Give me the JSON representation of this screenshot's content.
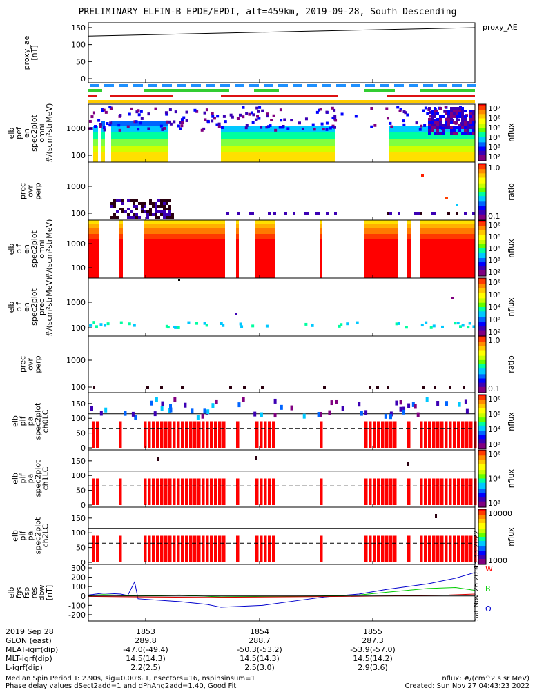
{
  "title": "PRELIMINARY ELFIN-B EPDE/EPDI, alt=459km, 2019-09-28, South Descending",
  "chart_data": {
    "type": "heatmap",
    "time_axis": {
      "date_label": "2019 Sep 28",
      "ticks": [
        "1853",
        "1854",
        "1855"
      ],
      "rows": [
        {
          "name": "GLON (east)",
          "values": [
            "289.8",
            "288.7",
            "287.3"
          ]
        },
        {
          "name": "MLAT-igrf(dip)",
          "values": [
            "-47.0(-49.4)",
            "-50.3(-53.2)",
            "-53.9(-57.0)"
          ]
        },
        {
          "name": "MLT-igrf(dip)",
          "values": [
            "14.5(14.3)",
            "14.5(14.3)",
            "14.5(14.2)"
          ]
        },
        {
          "name": "L-igrf(dip)",
          "values": [
            "2.2(2.5)",
            "2.5(3.0)",
            "2.9(3.6)"
          ]
        }
      ]
    },
    "panels": [
      {
        "id": "proxy_ae",
        "ylabel": [
          "proxy_ae",
          "[nT]"
        ],
        "yticks": [
          "0",
          "50",
          "100",
          "150"
        ],
        "legend": "proxy_AE",
        "line": {
          "start": 125,
          "end": 150,
          "ymin": 0,
          "ymax": 160
        }
      },
      {
        "id": "epde_omni",
        "ylabel": [
          "elb",
          "pef",
          "en",
          "spec2plot",
          "omni",
          "#/(scm²strMeV)"
        ],
        "yticks": [
          "100",
          "1000"
        ],
        "colorbar": {
          "labels": [
            "10⁷",
            "10⁶",
            "10⁵",
            "10⁴",
            "10³",
            "10²"
          ],
          "title": "nflux"
        }
      },
      {
        "id": "epde_ratio",
        "ylabel": [
          "prec",
          "ovr",
          "perp"
        ],
        "yticks": [
          "100",
          "1000"
        ],
        "colorbar": {
          "labels": [
            "1.0",
            "0.1"
          ],
          "title": "ratio"
        }
      },
      {
        "id": "epdi_omni",
        "ylabel": [
          "elb",
          "pif",
          "en",
          "spec2plot",
          "omni",
          "#/(scm²strMeV)"
        ],
        "yticks": [
          "100",
          "1000"
        ],
        "colorbar": {
          "labels": [
            "10⁶",
            "10⁵",
            "10⁴",
            "10³",
            "10²"
          ],
          "title": "nflux"
        }
      },
      {
        "id": "epdi_prec",
        "ylabel": [
          "elb",
          "pif",
          "en",
          "spec2plot",
          "prec",
          "#/(scm²strMeV)"
        ],
        "yticks": [
          "100",
          "1000"
        ],
        "colorbar": {
          "labels": [
            "10⁶",
            "10⁵",
            "10⁴",
            "10³",
            "10²"
          ],
          "title": "nflux"
        }
      },
      {
        "id": "epdi_ratio",
        "ylabel": [
          "prec",
          "ovr",
          "perp"
        ],
        "yticks": [
          "100",
          "1000"
        ],
        "colorbar": {
          "labels": [
            "1.0",
            "0.1"
          ],
          "title": "ratio"
        }
      },
      {
        "id": "pa_ch0",
        "ylabel": [
          "elb",
          "pif",
          "pa",
          "spec2plot",
          "ch0LC"
        ],
        "yticks": [
          "0",
          "50",
          "100",
          "150"
        ],
        "colorbar": {
          "labels": [
            "10⁶",
            "10⁵",
            "10⁴",
            "10³"
          ],
          "title": "nflux"
        }
      },
      {
        "id": "pa_ch1",
        "ylabel": [
          "elb",
          "pif",
          "pa",
          "spec2plot",
          "ch1LC"
        ],
        "yticks": [
          "0",
          "50",
          "100",
          "150"
        ],
        "colorbar": {
          "labels": [
            "10⁶",
            "10⁴",
            "10³"
          ],
          "title": "nflux"
        }
      },
      {
        "id": "pa_ch2",
        "ylabel": [
          "elb",
          "pif",
          "pa",
          "spec2plot",
          "ch2LC"
        ],
        "yticks": [
          "0",
          "50",
          "100",
          "150"
        ],
        "colorbar": {
          "labels": [
            "10000",
            "1000"
          ],
          "title": "nflux"
        }
      },
      {
        "id": "fgs",
        "ylabel": [
          "elb",
          "fgs",
          "fsp",
          "res",
          "dbw",
          "[nT]"
        ],
        "yticks": [
          "-200",
          "-100",
          "0",
          "100",
          "200",
          "300"
        ],
        "legend": [
          {
            "name": "W",
            "color": "#ff0000"
          },
          {
            "name": "B",
            "color": "#00cc00"
          },
          {
            "name": "O",
            "color": "#0000cc"
          }
        ]
      }
    ],
    "side_label": "Sat Nov 26 20:43:33 2022"
  },
  "footer": {
    "left1": "Median Spin Period T: 2.90s, sig=0.00% T, nsectors=16, nspinsinsum=1",
    "left2": "Phase delay values dSect2add=1 and dPhAng2add=1.40, Good Fit",
    "right1": "nflux: #/(cm^2 s sr MeV)",
    "right2": "Created: Sun Nov 27 04:43:23 2022"
  }
}
